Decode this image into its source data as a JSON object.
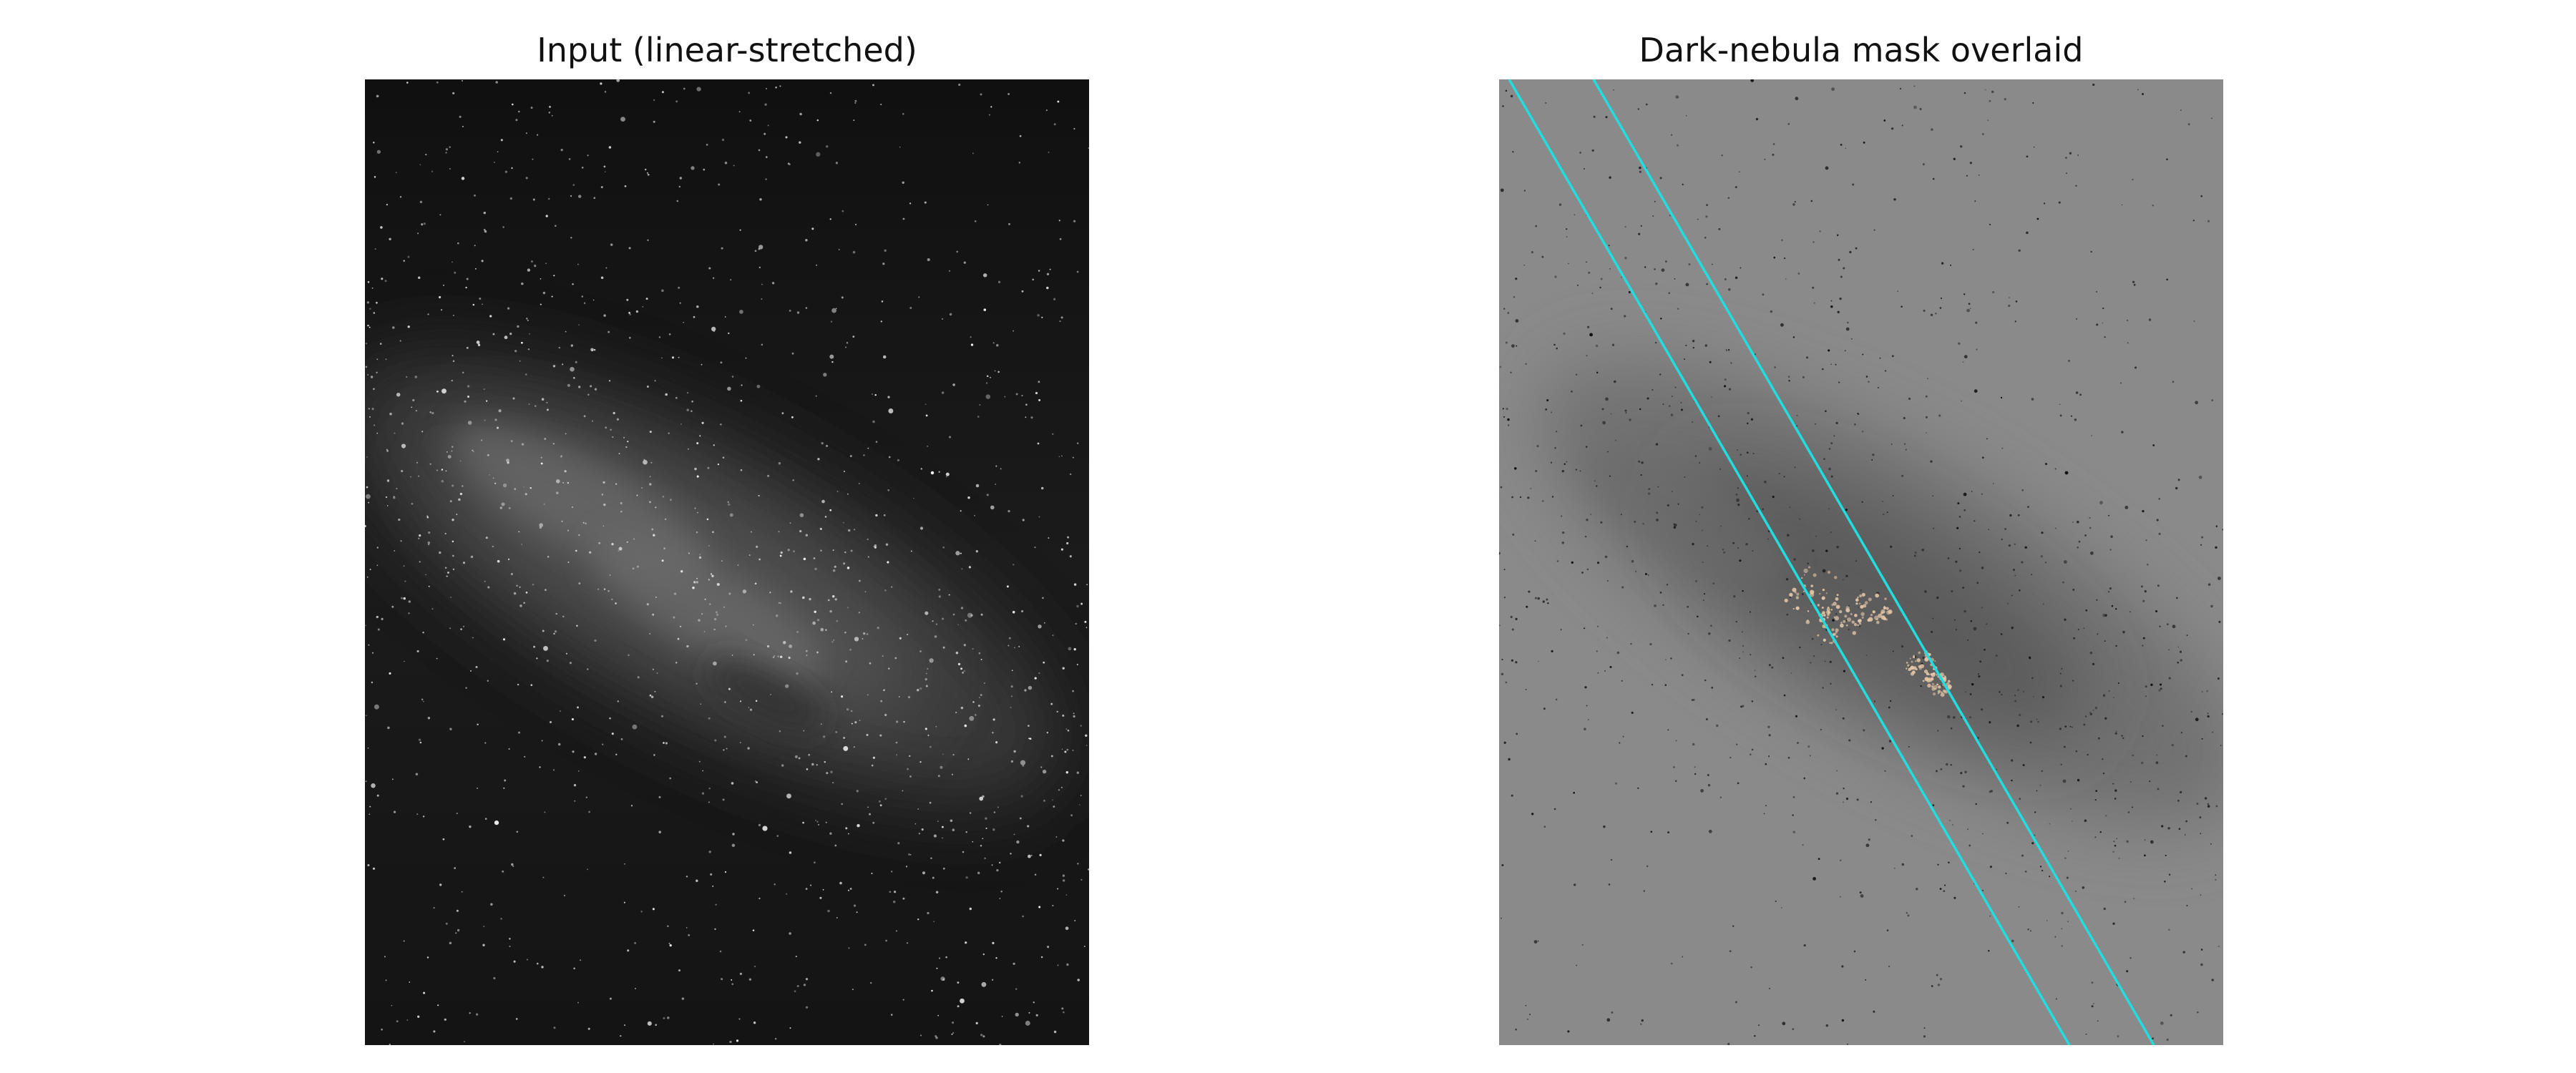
{
  "figure": {
    "left_title": "Input (linear-stretched)",
    "right_title": "Dark-nebula mask overlaid"
  },
  "colors": {
    "figure_background": "#ffffff",
    "input_background": "#141414",
    "overlay_background": "#8a8a8a",
    "mask_band_line": "#22dde0",
    "mask_detections": "#e8c9a8"
  }
}
